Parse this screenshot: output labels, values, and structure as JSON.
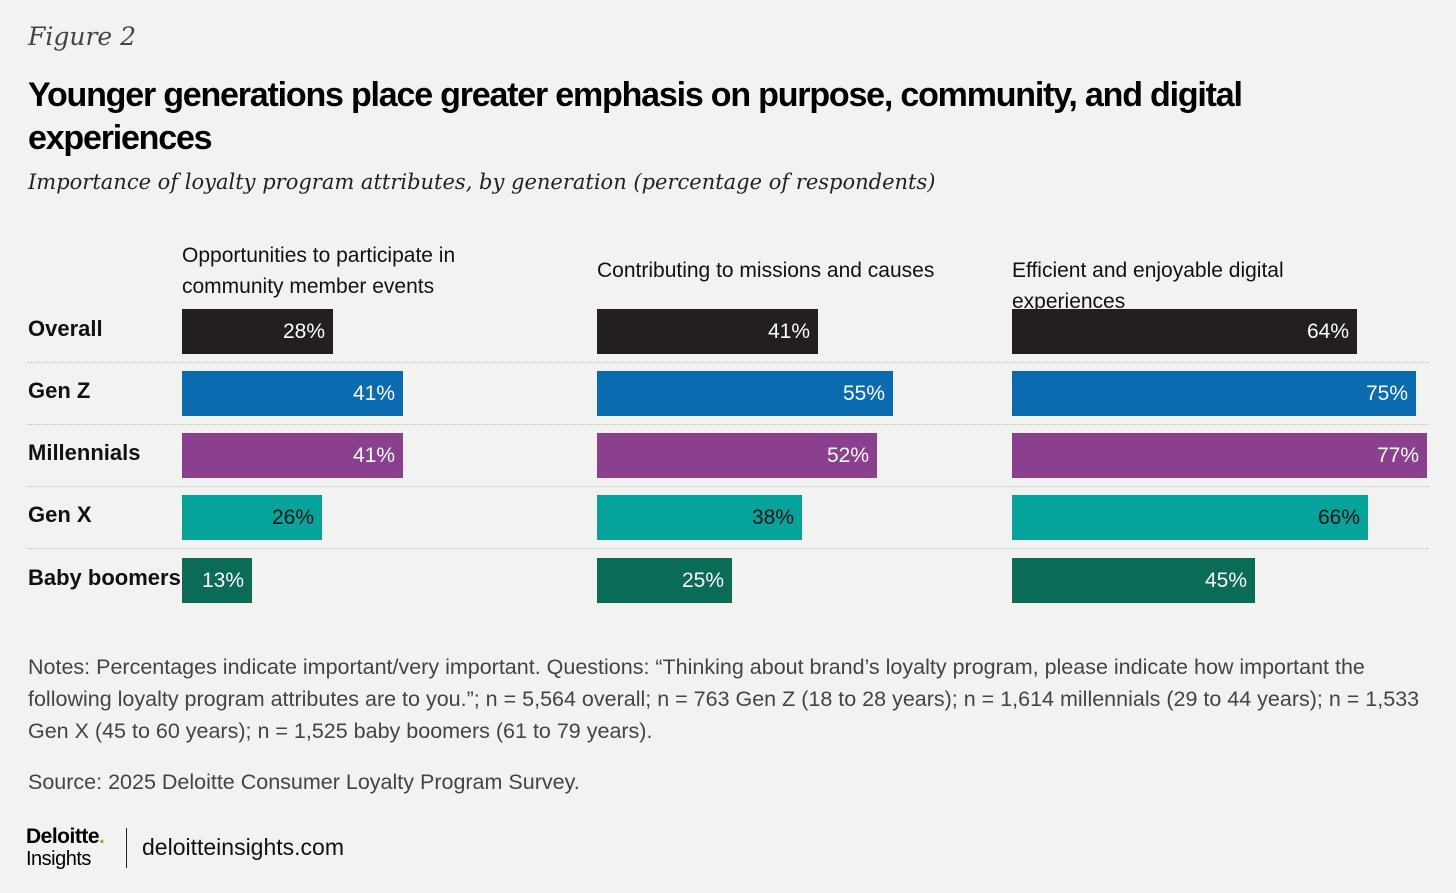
{
  "figure_label": "Figure 2",
  "title": "Younger generations place greater emphasis on purpose, community, and digital experiences",
  "subtitle": "Importance of loyalty program attributes, by generation (percentage of respondents)",
  "chart_data": {
    "type": "bar",
    "orientation": "horizontal",
    "panels": [
      {
        "title": "Opportunities to participate in community member events",
        "values": [
          28,
          41,
          41,
          26,
          13
        ]
      },
      {
        "title": "Contributing to missions and causes",
        "values": [
          41,
          55,
          52,
          38,
          25
        ]
      },
      {
        "title": "Efficient and enjoyable digital experiences",
        "values": [
          64,
          75,
          77,
          66,
          45
        ]
      }
    ],
    "categories": [
      "Overall",
      "Gen Z",
      "Millennials",
      "Gen X",
      "Baby boomers"
    ],
    "value_suffix": "%",
    "category_colors": [
      "#231f20",
      "#0a6bb0",
      "#8b3f8f",
      "#05a39a",
      "#0a6b56"
    ],
    "label_colors": [
      "#ffffff",
      "#ffffff",
      "#ffffff",
      "#111111",
      "#ffffff"
    ],
    "scale_max": 77,
    "grid": false,
    "legend": "none"
  },
  "notes": "Notes: Percentages indicate important/very important. Questions: “Thinking about brand’s loyalty program, please indicate how important the following loyalty program attributes are to you.”; n = 5,564 overall; n = 763 Gen Z (18 to 28 years); n = 1,614 millennials (29 to 44 years); n = 1,533 Gen X (45 to 60 years); n = 1,525 baby boomers (61 to 79 years).",
  "source": "Source: 2025 Deloitte Consumer Loyalty Program Survey.",
  "logo": {
    "main": "Deloitte",
    "dot": ".",
    "sub": "Insights"
  },
  "site": "deloitteinsights.com"
}
